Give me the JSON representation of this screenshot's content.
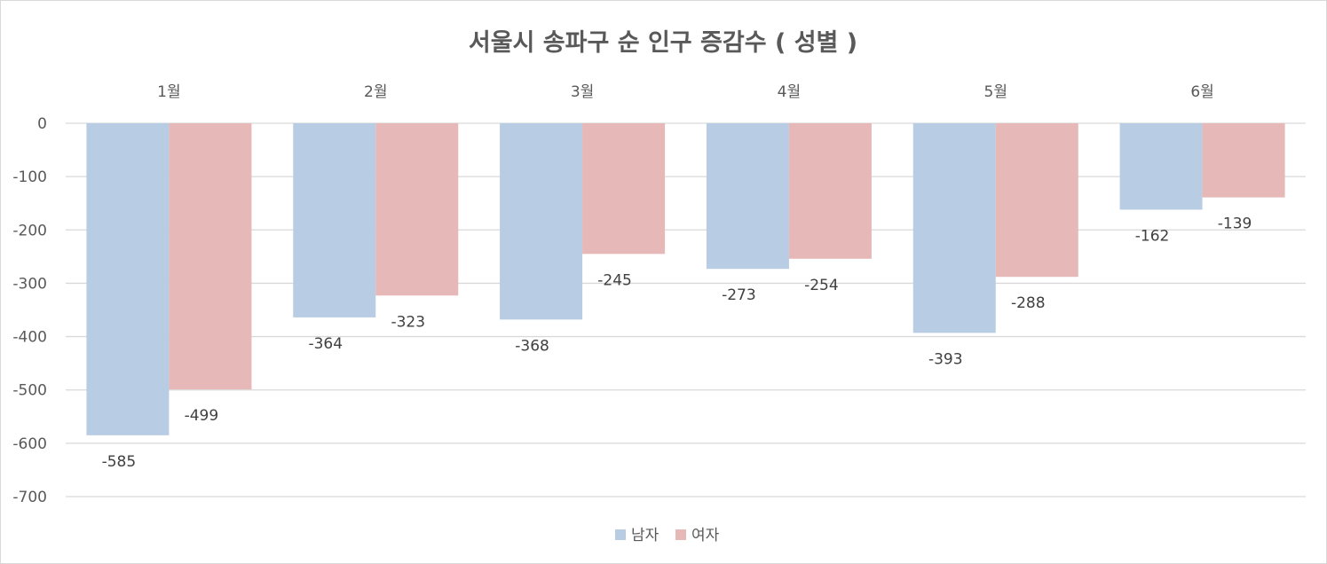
{
  "chart_data": {
    "type": "bar",
    "title": "서울시 송파구 순 인구 증감수 ( 성별 )",
    "categories": [
      "1월",
      "2월",
      "3월",
      "4월",
      "5월",
      "6월"
    ],
    "series": [
      {
        "name": "남자",
        "color": "#b8cce4",
        "values": [
          -585,
          -364,
          -368,
          -273,
          -393,
          -162
        ]
      },
      {
        "name": "여자",
        "color": "#e6b8b7",
        "values": [
          -499,
          -323,
          -245,
          -254,
          -288,
          -139
        ]
      }
    ],
    "ylim": [
      -700,
      0
    ],
    "yticks": [
      0,
      -100,
      -200,
      -300,
      -400,
      -500,
      -600,
      -700
    ],
    "grid": true,
    "category_axis_position": "top",
    "legend_position": "bottom",
    "xlabel": "",
    "ylabel": ""
  }
}
